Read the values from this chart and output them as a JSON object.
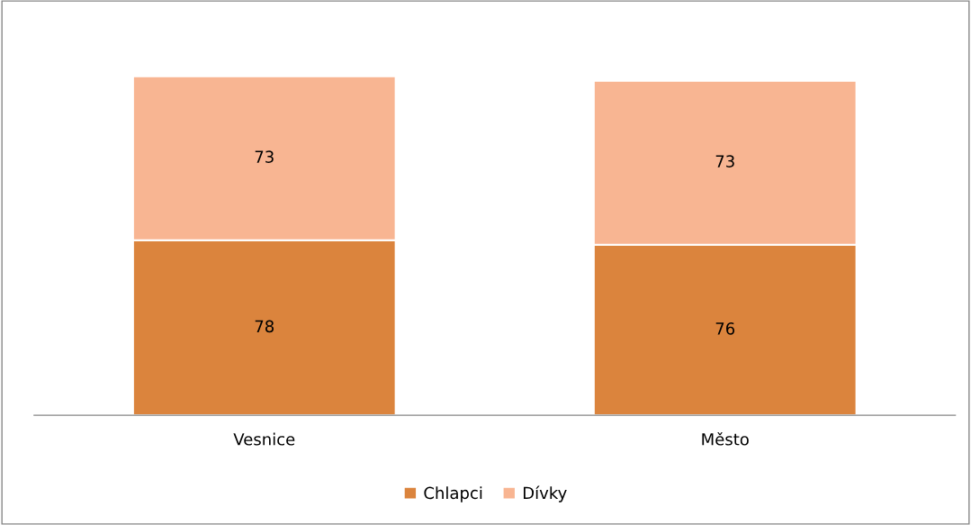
{
  "chart_data": {
    "type": "bar",
    "stacked": true,
    "categories": [
      "Vesnice",
      "Město"
    ],
    "series": [
      {
        "name": "Chlapci",
        "color": "#db843d",
        "values": [
          78,
          76
        ]
      },
      {
        "name": "Dívky",
        "color": "#f8b592",
        "values": [
          73,
          73
        ]
      }
    ],
    "data_labels": true,
    "legend": "bottom",
    "grid": false
  }
}
